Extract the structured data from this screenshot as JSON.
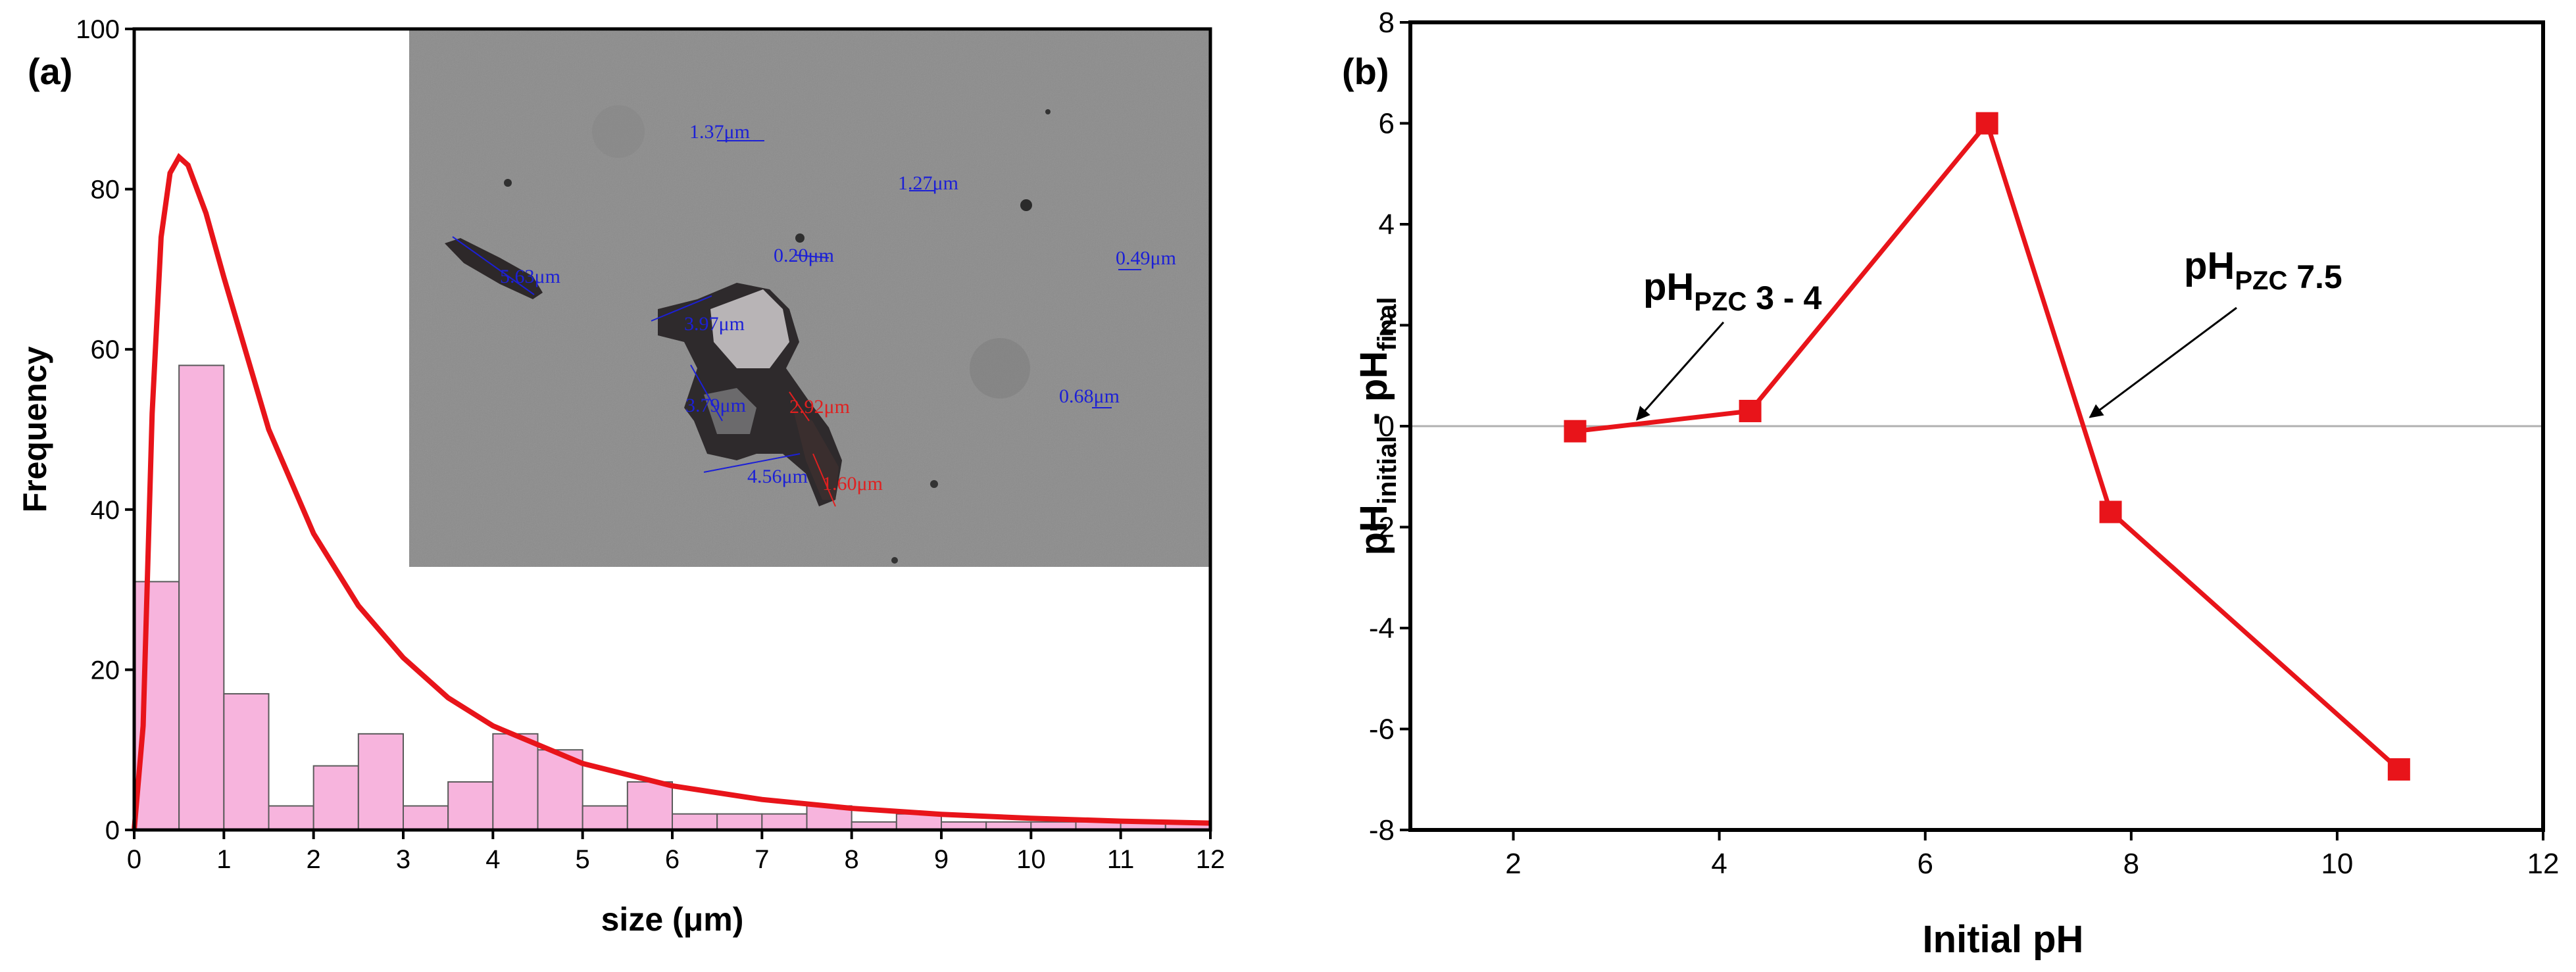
{
  "chart_data": [
    {
      "type": "bar",
      "panel_label": "(a)",
      "xlabel": "size (μm)",
      "ylabel": "Frequency",
      "xlim": [
        0,
        12
      ],
      "ylim": [
        0,
        100
      ],
      "xticks": [
        0,
        1,
        2,
        3,
        4,
        5,
        6,
        7,
        8,
        9,
        10,
        11,
        12
      ],
      "yticks": [
        0,
        20,
        40,
        60,
        80,
        100
      ],
      "bin_width": 0.5,
      "bins": [
        {
          "start": 0.0,
          "value": 31
        },
        {
          "start": 0.5,
          "value": 58
        },
        {
          "start": 1.0,
          "value": 17
        },
        {
          "start": 1.5,
          "value": 3
        },
        {
          "start": 2.0,
          "value": 8
        },
        {
          "start": 2.5,
          "value": 12
        },
        {
          "start": 3.0,
          "value": 3
        },
        {
          "start": 3.5,
          "value": 6
        },
        {
          "start": 4.0,
          "value": 12
        },
        {
          "start": 4.5,
          "value": 10
        },
        {
          "start": 5.0,
          "value": 3
        },
        {
          "start": 5.5,
          "value": 6
        },
        {
          "start": 6.0,
          "value": 2
        },
        {
          "start": 6.5,
          "value": 2
        },
        {
          "start": 7.0,
          "value": 2
        },
        {
          "start": 7.5,
          "value": 3
        },
        {
          "start": 8.0,
          "value": 1
        },
        {
          "start": 8.5,
          "value": 2
        },
        {
          "start": 9.0,
          "value": 1
        },
        {
          "start": 9.5,
          "value": 1
        },
        {
          "start": 10.0,
          "value": 1
        },
        {
          "start": 10.5,
          "value": 1
        },
        {
          "start": 11.0,
          "value": 1
        },
        {
          "start": 11.5,
          "value": 1
        }
      ],
      "fit_curve": {
        "type": "lognormal",
        "peak_x": 0.5,
        "peak_y": 84,
        "points": [
          [
            0.1,
            13
          ],
          [
            0.2,
            52
          ],
          [
            0.3,
            74
          ],
          [
            0.4,
            82
          ],
          [
            0.5,
            84
          ],
          [
            0.6,
            83
          ],
          [
            0.8,
            77
          ],
          [
            1.0,
            69
          ],
          [
            1.5,
            50
          ],
          [
            2.0,
            37
          ],
          [
            2.5,
            28
          ],
          [
            3.0,
            21.5
          ],
          [
            3.5,
            16.5
          ],
          [
            4.0,
            13
          ],
          [
            5.0,
            8.3
          ],
          [
            6.0,
            5.5
          ],
          [
            7.0,
            3.8
          ],
          [
            8.0,
            2.7
          ],
          [
            9.0,
            1.95
          ],
          [
            10.0,
            1.45
          ],
          [
            11.0,
            1.1
          ],
          [
            12.0,
            0.85
          ]
        ]
      },
      "colors": {
        "bars": "#f7b4dd",
        "bar_edge": "#5a5a5a",
        "curve": "#e8141a"
      },
      "inset_image": {
        "description": "optical micrograph of particles",
        "measurements_blue": [
          "1.37μm",
          "1.27μm",
          "5.63μm",
          "0.20μm",
          "0.49μm",
          "3.97μm",
          "3.79μm",
          "0.68μm",
          "4.56μm"
        ],
        "measurements_red": [
          "2.92μm",
          "1.60μm"
        ]
      }
    },
    {
      "type": "line",
      "panel_label": "(b)",
      "xlabel": "Initial pH",
      "ylabel_parts": {
        "base1": "pH",
        "sub1": "initial",
        "mid": " - pH",
        "sub2": "final"
      },
      "xlim": [
        1,
        12
      ],
      "ylim": [
        -8,
        8
      ],
      "xticks": [
        2,
        4,
        6,
        8,
        10,
        12
      ],
      "yticks": [
        -8,
        -6,
        -4,
        -2,
        0,
        2,
        4,
        6,
        8
      ],
      "x": [
        2.6,
        4.3,
        6.6,
        7.8,
        10.6
      ],
      "y": [
        -0.1,
        0.3,
        6.0,
        -1.7,
        -6.8
      ],
      "reference_line_y": 0,
      "annotations": [
        {
          "base": "pH",
          "sub": "PZC",
          "rest": " 3 - 4",
          "arrow_to": [
            3.2,
            0.05
          ]
        },
        {
          "base": "pH",
          "sub": "PZC",
          "rest": " 7.5",
          "arrow_to": [
            7.6,
            0.1
          ]
        }
      ],
      "colors": {
        "line": "#e8141a",
        "marker": "#e8141a",
        "zero_line": "#b0b0b0"
      }
    }
  ]
}
